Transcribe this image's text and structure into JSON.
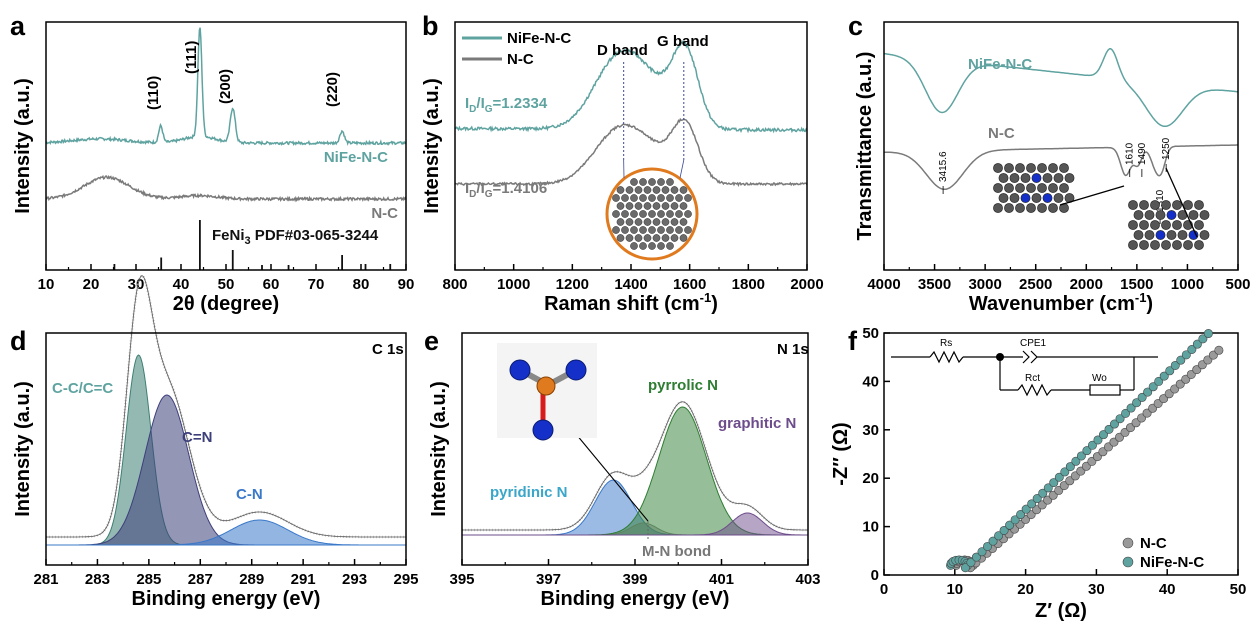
{
  "colors": {
    "teal": "#5fa3a0",
    "gray": "#7a7a7a",
    "black": "#000000",
    "orange": "#e07a1f",
    "blue": "#1530c8",
    "green": "#2e7d32",
    "purple": "#6d4c8b",
    "tealText": "#5fa3a0",
    "blueLabel": "#3aa6c9",
    "navy": "#3d3f7a"
  },
  "panels": {
    "a": {
      "letter": "a"
    },
    "b": {
      "letter": "b"
    },
    "c": {
      "letter": "c"
    },
    "d": {
      "letter": "d"
    },
    "e": {
      "letter": "e"
    },
    "f": {
      "letter": "f"
    }
  },
  "chart_data": [
    {
      "type": "line",
      "panel": "a",
      "xlabel": "2θ (degree)",
      "ylabel": "Intensity (a.u.)",
      "xlim": [
        10,
        90
      ],
      "xticks": [
        "10",
        "20",
        "30",
        "40",
        "50",
        "60",
        "70",
        "80",
        "90"
      ],
      "series": [
        {
          "name": "NiFe-N-C",
          "color": "#5fa3a0"
        },
        {
          "name": "N-C",
          "color": "#7a7a7a"
        }
      ],
      "peaks": [
        {
          "label": "(110)",
          "x": 35.5
        },
        {
          "label": "(111)",
          "x": 44.2
        },
        {
          "label": "(200)",
          "x": 51.5
        },
        {
          "label": "(220)",
          "x": 75.8
        }
      ],
      "reference": {
        "label_main": "FeNi",
        "label_sub": "3",
        "label_rest": " PDF#03-065-3244",
        "lines": [
          25.2,
          35.6,
          44.2,
          51.5,
          58.0,
          63.9,
          75.8,
          81.0,
          86.5
        ],
        "heights": [
          0.12,
          0.25,
          1.0,
          0.4,
          0.1,
          0.1,
          0.3,
          0.12,
          0.12
        ]
      }
    },
    {
      "type": "line",
      "panel": "b",
      "xlabel": "Raman shift (cm",
      "xlabel_sup": "-1",
      "xlabel_end": ")",
      "ylabel": "Intensity (a.u.)",
      "xlim": [
        800,
        2000
      ],
      "xticks": [
        "800",
        "1000",
        "1200",
        "1400",
        "1600",
        "1800",
        "2000"
      ],
      "series": [
        {
          "name": "NiFe-N-C",
          "color": "#5fa3a0"
        },
        {
          "name": "N-C",
          "color": "#7a7a7a"
        }
      ],
      "bands": [
        {
          "label": "D band",
          "x": 1375
        },
        {
          "label": "G band",
          "x": 1580
        }
      ],
      "ratios": [
        {
          "series": "NiFe-N-C",
          "value": "=1.2334"
        },
        {
          "series": "N-C",
          "value": "=1.4106"
        }
      ]
    },
    {
      "type": "line",
      "panel": "c",
      "xlabel": "Wavenumber (cm",
      "xlabel_sup": "-1",
      "xlabel_end": ")",
      "ylabel": "Transmittance (a.u.)",
      "xlim": [
        4000,
        500
      ],
      "xticks": [
        "4000",
        "3500",
        "3000",
        "2500",
        "2000",
        "1500",
        "1000",
        "500"
      ],
      "series": [
        {
          "name": "NiFe-N-C",
          "color": "#5fa3a0"
        },
        {
          "name": "N-C",
          "color": "#7a7a7a"
        }
      ],
      "peaks": [
        "3415.6",
        "1610",
        "1490",
        "1310",
        "1250"
      ]
    },
    {
      "type": "area",
      "panel": "d",
      "title": "C 1s",
      "xlabel": "Binding energy (eV)",
      "ylabel": "Intensity (a.u.)",
      "xlim": [
        281,
        295
      ],
      "xticks": [
        "281",
        "283",
        "285",
        "287",
        "289",
        "291",
        "293",
        "295"
      ],
      "components": [
        {
          "name": "C-C/C=C",
          "center": 284.6,
          "color": "#3d7f73"
        },
        {
          "name": "C=N",
          "center": 285.7,
          "color": "#3d3f7a"
        },
        {
          "name": "C-N",
          "center": 289.3,
          "color": "#3a78c9"
        }
      ]
    },
    {
      "type": "area",
      "panel": "e",
      "title": "N 1s",
      "xlabel": "Binding energy (eV)",
      "ylabel": "Intensity (a.u.)",
      "xlim": [
        395,
        403
      ],
      "xticks": [
        "395",
        "397",
        "399",
        "401",
        "403"
      ],
      "components": [
        {
          "name": "pyridinic N",
          "center": 398.5,
          "color": "#3a78c9"
        },
        {
          "name": "M-N bond",
          "center": 399.2,
          "color": "#888888"
        },
        {
          "name": "pyrrolic N",
          "center": 400.1,
          "color": "#2e7d32"
        },
        {
          "name": "graphitic N",
          "center": 401.6,
          "color": "#6d4c8b"
        }
      ]
    },
    {
      "type": "scatter",
      "panel": "f",
      "xlabel": "Z′ (Ω)",
      "ylabel": "-Z″ (Ω)",
      "xlim": [
        0,
        50
      ],
      "ylim": [
        0,
        50
      ],
      "xticks": [
        "0",
        "10",
        "20",
        "30",
        "40",
        "50"
      ],
      "yticks": [
        "0",
        "10",
        "20",
        "30",
        "40",
        "50"
      ],
      "series": [
        {
          "name": "N-C",
          "color": "#9a9a9a"
        },
        {
          "name": "NiFe-N-C",
          "color": "#5fa3a0"
        }
      ],
      "circuit": {
        "rs": "Rs",
        "cpe": "CPE1",
        "rct": "Rct",
        "wo": "Wo"
      }
    }
  ]
}
